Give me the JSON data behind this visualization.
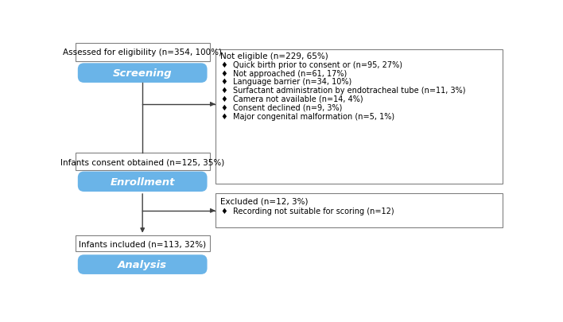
{
  "bg_color": "#ffffff",
  "box_border_color": "#808080",
  "rounded_box_color": "#6ab4e8",
  "rounded_box_text_color": "#ffffff",
  "text_color": "#000000",
  "arrow_color": "#404040",
  "screen_top_text": "Assessed for eligibility (n=354, 100%)",
  "screen_label": "Screening",
  "enroll_top_text": "Infants consent obtained (n=125, 35%)",
  "enroll_label": "Enrollment",
  "analysis_top_text": "Infants included (n=113, 32%)",
  "analysis_label": "Analysis",
  "not_eligible_title": "Not eligible (n=229, 65%)",
  "not_eligible_items": [
    "Quick birth prior to consent or (n=95, 27%)",
    "Not approached (n=61, 17%)",
    "Language barrier (n=34, 10%)",
    "Surfactant administration by endotracheal tube (n=11, 3%)",
    "Camera not available (n=14, 4%)",
    "Consent declined (n=9, 3%)",
    "Major congenital malformation (n=5, 1%)"
  ],
  "excluded_title": "Excluded (n=12, 3%)",
  "excluded_items": [
    "Recording not suitable for scoring (n=12)"
  ],
  "font_size_small": 7.5,
  "font_size_rounded": 9.5
}
